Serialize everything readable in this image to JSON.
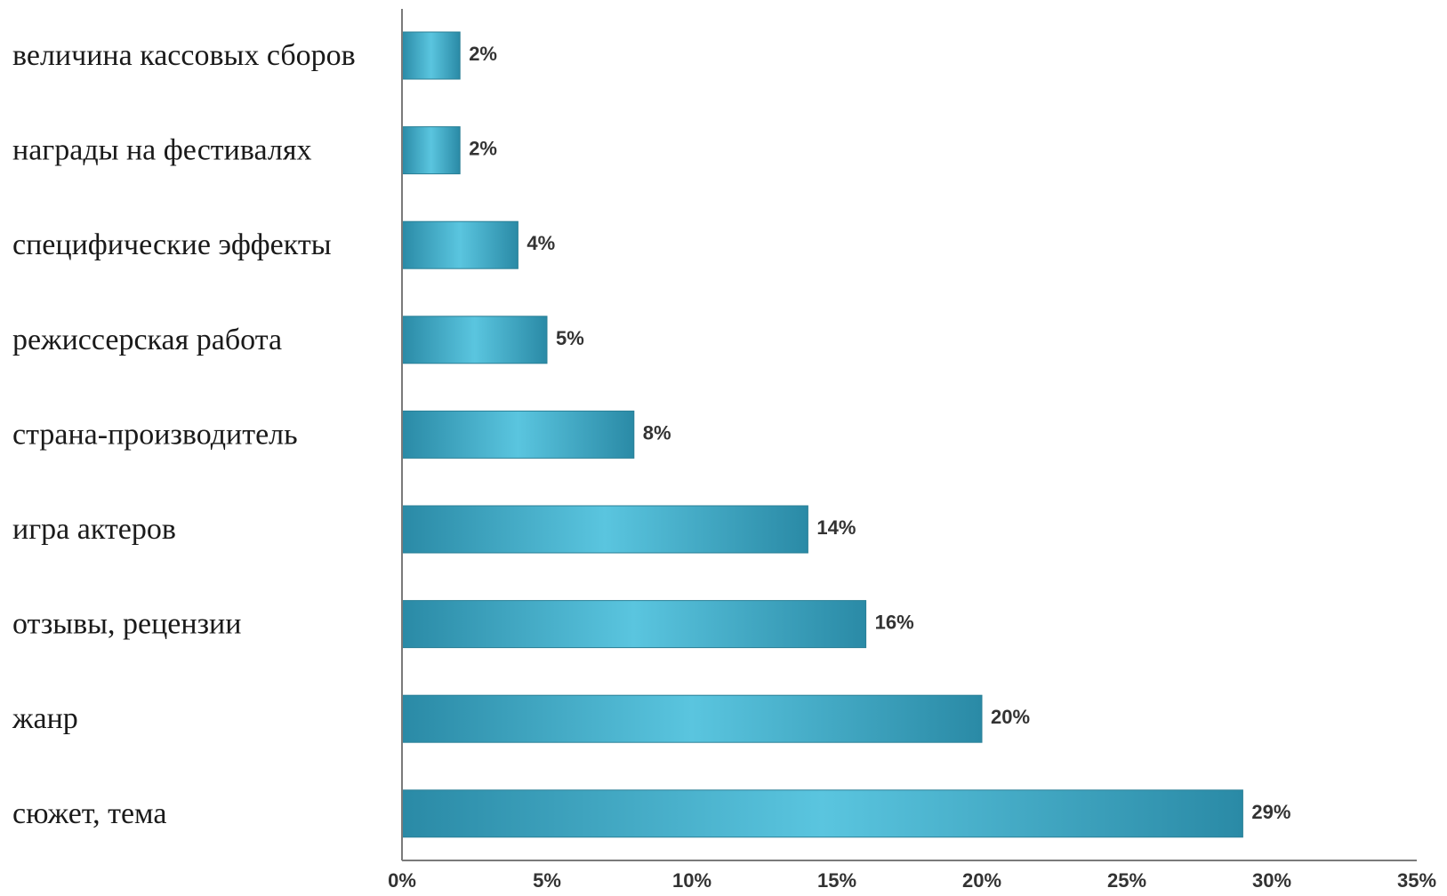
{
  "chart_data": {
    "type": "bar",
    "orientation": "horizontal",
    "categories": [
      "величина кассовых сборов",
      "награды на фестивалях",
      "специфические эффекты",
      "режиссерская работа",
      "страна-производитель",
      "игра актеров",
      "отзывы, рецензии",
      "жанр",
      "сюжет, тема"
    ],
    "values": [
      2,
      2,
      4,
      5,
      8,
      14,
      16,
      20,
      29
    ],
    "value_labels": [
      "2%",
      "2%",
      "4%",
      "5%",
      "8%",
      "14%",
      "16%",
      "20%",
      "29%"
    ],
    "x_ticks": [
      0,
      5,
      10,
      15,
      20,
      25,
      30,
      35
    ],
    "x_tick_labels": [
      "0%",
      "5%",
      "10%",
      "15%",
      "20%",
      "25%",
      "30%",
      "35%"
    ],
    "xlim": [
      0,
      35
    ],
    "title": "",
    "xlabel": "",
    "ylabel": "",
    "grid": false,
    "legend": "none",
    "colors": {
      "bar_edge": "#2a8aa6",
      "bar_center": "#5ac5df",
      "axis": "#7a7a7a"
    }
  }
}
